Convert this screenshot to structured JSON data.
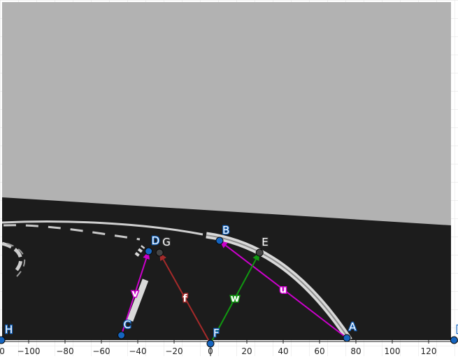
{
  "axis": {
    "x_ticks": [
      "−100",
      "−80",
      "−60",
      "−40",
      "−20",
      "0",
      "20",
      "40",
      "60",
      "80",
      "100",
      "120"
    ],
    "x_tick_values": [
      -100,
      -80,
      -60,
      -40,
      -20,
      0,
      20,
      40,
      60,
      80,
      100,
      120
    ],
    "left_edge_label": "0"
  },
  "points": [
    {
      "id": "A",
      "label": "A",
      "x": 75,
      "style": "blue"
    },
    {
      "id": "B",
      "label": "B",
      "x": 5,
      "style": "blue"
    },
    {
      "id": "C",
      "label": "C",
      "x": -49,
      "style": "blue"
    },
    {
      "id": "D",
      "label": "D",
      "x": -34,
      "style": "blue"
    },
    {
      "id": "E",
      "label": "E",
      "x": 27,
      "style": "gray"
    },
    {
      "id": "F",
      "label": "F",
      "x": 0,
      "style": "blue"
    },
    {
      "id": "G",
      "label": "G",
      "x": -28,
      "style": "gray"
    },
    {
      "id": "H",
      "label": "H",
      "x": -115,
      "style": "blue"
    },
    {
      "id": "I",
      "label": "I",
      "x": 134,
      "style": "blue"
    }
  ],
  "vectors": [
    {
      "id": "u",
      "label": "u",
      "from": "A",
      "to": "B",
      "color": "#cc00cc"
    },
    {
      "id": "v",
      "label": "v",
      "from": "C",
      "to": "D",
      "color": "#cc00cc"
    },
    {
      "id": "w",
      "label": "w",
      "from": "F",
      "to": "E",
      "color": "#119911"
    },
    {
      "id": "f",
      "label": "f",
      "from": "F",
      "to": "G",
      "color": "#a52a2a"
    }
  ],
  "colors": {
    "sky": "#b2b2b2",
    "road": "#1c1c1c",
    "lane_marking": "#d9d9d9",
    "point_blue": "#1565c0",
    "point_gray": "#444444",
    "grid": "#e2e2e2"
  }
}
